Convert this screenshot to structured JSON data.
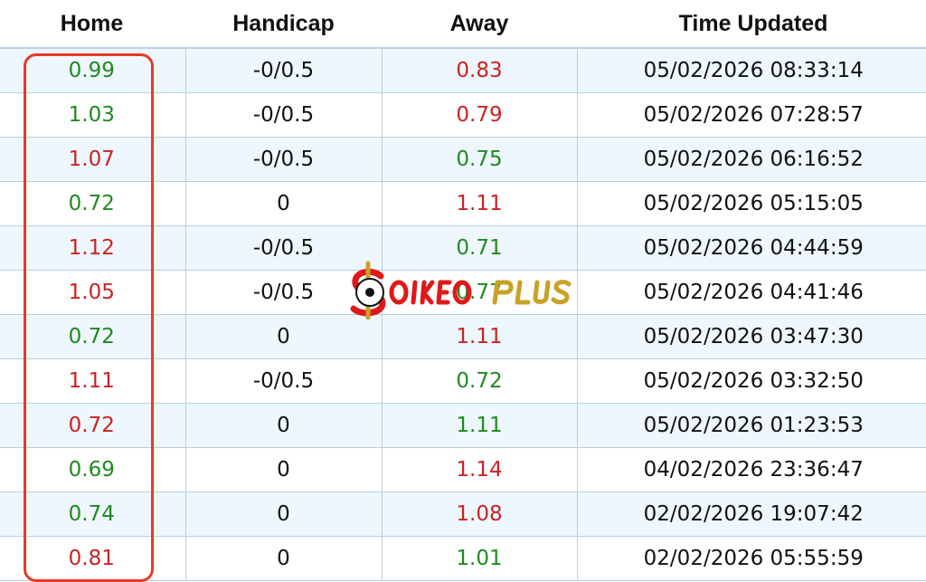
{
  "headers": [
    "Home",
    "Handicap",
    "Away",
    "Time Updated"
  ],
  "colors": {
    "green": "#1f8a1f",
    "red": "#cc2222",
    "highlight": "#e53a26"
  },
  "rows": [
    {
      "home": "0.99",
      "home_color": "green",
      "handicap": "-0/0.5",
      "away": "0.83",
      "away_color": "red",
      "time": "05/02/2026 08:33:14"
    },
    {
      "home": "1.03",
      "home_color": "green",
      "handicap": "-0/0.5",
      "away": "0.79",
      "away_color": "red",
      "time": "05/02/2026 07:28:57"
    },
    {
      "home": "1.07",
      "home_color": "red",
      "handicap": "-0/0.5",
      "away": "0.75",
      "away_color": "green",
      "time": "05/02/2026 06:16:52"
    },
    {
      "home": "0.72",
      "home_color": "green",
      "handicap": "0",
      "away": "1.11",
      "away_color": "red",
      "time": "05/02/2026 05:15:05"
    },
    {
      "home": "1.12",
      "home_color": "red",
      "handicap": "-0/0.5",
      "away": "0.71",
      "away_color": "green",
      "time": "05/02/2026 04:44:59"
    },
    {
      "home": "1.05",
      "home_color": "red",
      "handicap": "-0/0.5",
      "away": "0.77",
      "away_color": "green",
      "time": "05/02/2026 04:41:46"
    },
    {
      "home": "0.72",
      "home_color": "green",
      "handicap": "0",
      "away": "1.11",
      "away_color": "red",
      "time": "05/02/2026 03:47:30"
    },
    {
      "home": "1.11",
      "home_color": "red",
      "handicap": "-0/0.5",
      "away": "0.72",
      "away_color": "green",
      "time": "05/02/2026 03:32:50"
    },
    {
      "home": "0.72",
      "home_color": "red",
      "handicap": "0",
      "away": "1.11",
      "away_color": "green",
      "time": "05/02/2026 01:23:53"
    },
    {
      "home": "0.69",
      "home_color": "green",
      "handicap": "0",
      "away": "1.14",
      "away_color": "red",
      "time": "04/02/2026 23:36:47"
    },
    {
      "home": "0.74",
      "home_color": "green",
      "handicap": "0",
      "away": "1.08",
      "away_color": "red",
      "time": "02/02/2026 19:07:42"
    },
    {
      "home": "0.81",
      "home_color": "red",
      "handicap": "0",
      "away": "1.01",
      "away_color": "green",
      "time": "02/02/2026 05:55:59"
    }
  ],
  "watermark": {
    "text_a": "OIKEO",
    "text_b": "PLUS"
  }
}
